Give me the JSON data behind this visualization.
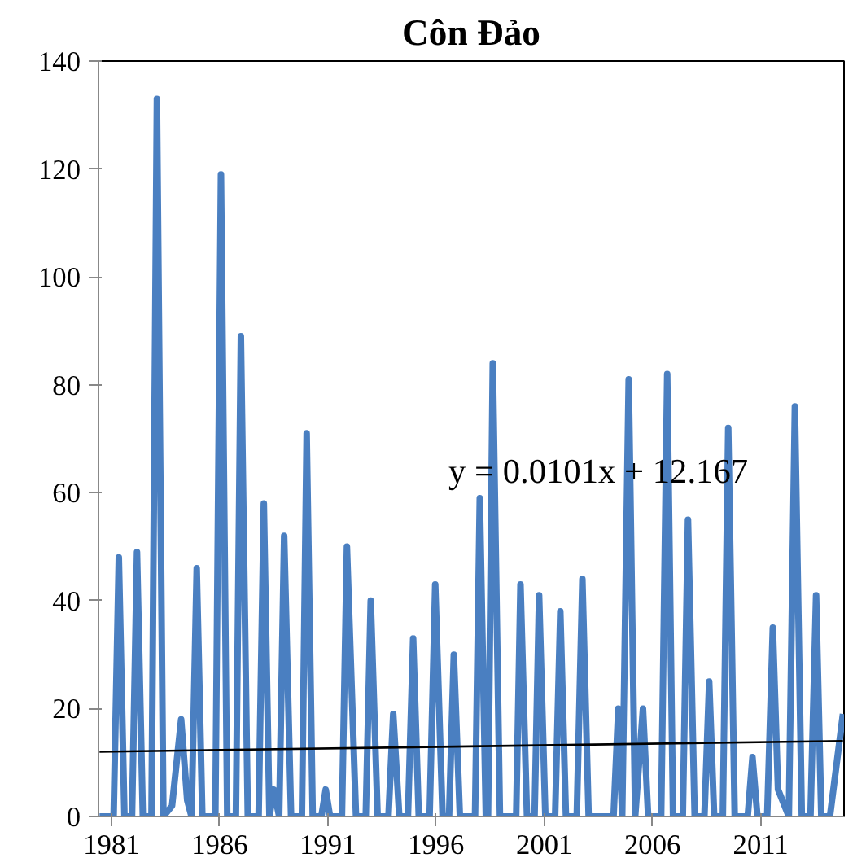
{
  "chart_data": {
    "type": "line",
    "title": "Côn Đảo",
    "xlim": [
      1980.4,
      2014.85
    ],
    "xticks": [
      1981,
      1986,
      1991,
      1996,
      2001,
      2006,
      2011
    ],
    "ylim": [
      0,
      140
    ],
    "yticks": [
      0,
      20,
      40,
      60,
      80,
      100,
      120,
      140
    ],
    "grid": false,
    "marker": "none",
    "line_style": "solid",
    "annotations": [
      "y = 0.0101x + 12.167"
    ],
    "series": [
      {
        "color": "#4a7fc1",
        "x": [
          1980.45,
          1981.1,
          1981.34,
          1981.6,
          1981.95,
          1982.18,
          1982.45,
          1982.85,
          1983.1,
          1983.4,
          1983.8,
          1984.22,
          1984.5,
          1984.7,
          1984.94,
          1985.2,
          1985.8,
          1986.06,
          1986.35,
          1986.75,
          1986.98,
          1987.3,
          1987.8,
          1988.04,
          1988.3,
          1988.5,
          1988.75,
          1988.98,
          1989.3,
          1989.8,
          1990.02,
          1990.3,
          1990.7,
          1990.9,
          1991.1,
          1991.65,
          1991.88,
          1992.3,
          1992.75,
          1992.98,
          1993.3,
          1993.8,
          1994.02,
          1994.3,
          1994.7,
          1994.94,
          1995.2,
          1995.7,
          1995.96,
          1996.3,
          1996.6,
          1996.82,
          1997.1,
          1997.8,
          1998.02,
          1998.3,
          1998.4,
          1998.62,
          1998.95,
          1999.7,
          1999.9,
          2000.2,
          2000.55,
          2000.76,
          2001.05,
          2001.5,
          2001.74,
          2002.0,
          2002.5,
          2002.76,
          2003.05,
          2004.2,
          2004.42,
          2004.6,
          2004.9,
          2005.2,
          2005.56,
          2005.8,
          2006.4,
          2006.68,
          2006.95,
          2007.4,
          2007.64,
          2007.95,
          2008.4,
          2008.62,
          2008.85,
          2009.25,
          2009.5,
          2009.8,
          2010.4,
          2010.62,
          2010.85,
          2011.3,
          2011.56,
          2011.8,
          2012.3,
          2012.58,
          2012.9,
          2013.3,
          2013.56,
          2013.8,
          2014.2,
          2014.8
        ],
        "values": [
          0,
          0,
          48,
          0,
          0,
          49,
          0,
          0,
          133,
          0,
          2,
          18,
          3,
          0,
          46,
          0,
          0,
          119,
          0,
          0,
          89,
          0,
          0,
          58,
          0,
          5,
          0,
          52,
          0,
          0,
          71,
          0,
          0,
          5,
          0,
          0,
          50,
          0,
          0,
          40,
          0,
          0,
          19,
          0,
          0,
          33,
          0,
          0,
          43,
          0,
          0,
          30,
          0,
          0,
          59,
          0,
          0,
          84,
          0,
          0,
          43,
          0,
          0,
          41,
          0,
          0,
          38,
          0,
          0,
          44,
          0,
          0,
          20,
          0,
          81,
          0,
          20,
          0,
          0,
          82,
          0,
          0,
          55,
          0,
          0,
          25,
          0,
          0,
          72,
          0,
          0,
          11,
          0,
          0,
          35,
          5,
          0,
          76,
          0,
          0,
          41,
          0,
          0,
          19
        ]
      },
      {
        "type": "line",
        "color": "#000000",
        "x": [
          1980.45,
          2014.8
        ],
        "values": [
          12,
          14
        ]
      }
    ]
  }
}
